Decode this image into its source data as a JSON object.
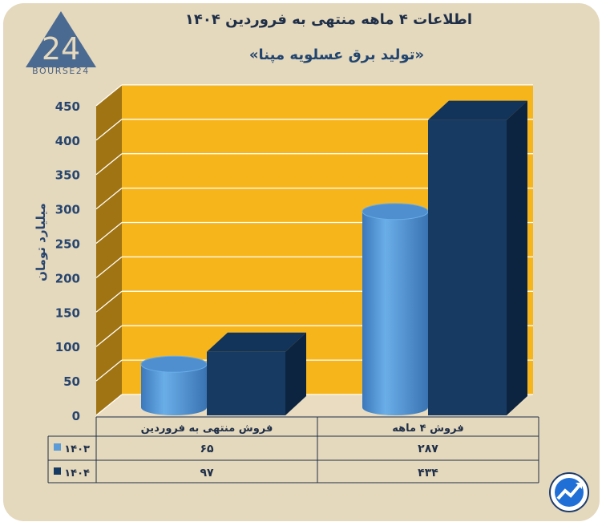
{
  "header": {
    "title": "اطلاعات ۴ ماهه منتهی به فروردین ۱۴۰۴",
    "subtitle": "«تولید برق عسلویه مپنا»",
    "logo_text": "BOURSE24",
    "logo_mark": "24"
  },
  "chart_data": {
    "type": "bar",
    "ylabel": "میلیارد تومان",
    "ylim": [
      0,
      450
    ],
    "yticks": [
      0,
      50,
      100,
      150,
      200,
      250,
      300,
      350,
      400,
      450
    ],
    "ytick_labels": [
      "0",
      "50",
      "100",
      "150",
      "200",
      "250",
      "300",
      "350",
      "400",
      "450"
    ],
    "grid": true,
    "categories": [
      "فروش منتهی به  فروردین",
      "فروش ۴  ماهه"
    ],
    "series": [
      {
        "name": "۱۴۰۳",
        "values": [
          65,
          287
        ],
        "value_labels": [
          "۶۵",
          "۲۸۷"
        ],
        "color": "#5b9bd8",
        "shape": "cylinder"
      },
      {
        "name": "۱۴۰۴",
        "values": [
          97,
          434
        ],
        "value_labels": [
          "۹۷",
          "۴۳۴"
        ],
        "color": "#173a63",
        "shape": "box"
      }
    ]
  },
  "colors": {
    "background": "#e4d8bd",
    "plot_back": "#f7b51c",
    "plot_side": "#a07412"
  },
  "icons": {
    "corner": "trend-chart-icon",
    "logo": "bourse24-logo-icon"
  }
}
